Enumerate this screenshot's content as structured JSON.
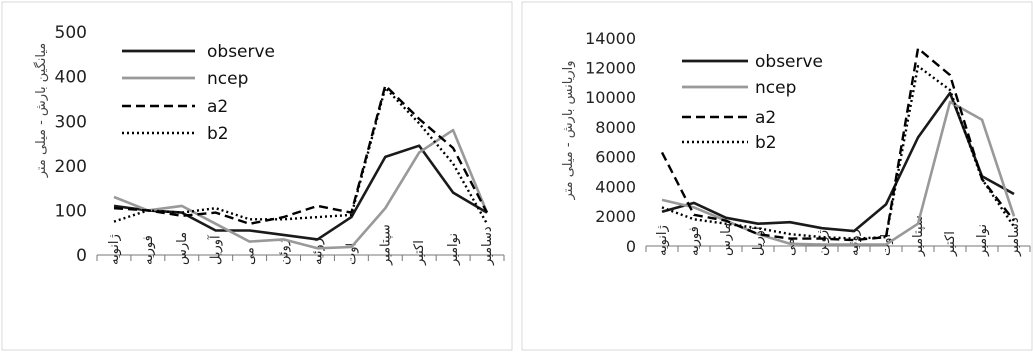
{
  "colors": {
    "observe": "#1a1a1a",
    "ncep": "#999999",
    "a2": "#000000",
    "b2": "#000000"
  },
  "chart_data": [
    {
      "type": "line",
      "title": "",
      "xlabel": "",
      "ylabel": "میانگین بارش - میلی متر",
      "ylim": [
        0,
        500
      ],
      "yticks": [
        0,
        100,
        200,
        300,
        400,
        500
      ],
      "grid": false,
      "legend": "top-left",
      "categories": [
        "ژانویه",
        "فوریه",
        "مارس",
        "آوریل",
        "می",
        "ژوئن",
        "ژوئیه",
        "اوت",
        "سپتامبر",
        "اکتبر",
        "نوامبر",
        "دسامبر"
      ],
      "series": [
        {
          "name": "observe",
          "style": "solid",
          "values": [
            110,
            100,
            95,
            55,
            55,
            45,
            35,
            85,
            220,
            245,
            140,
            95
          ]
        },
        {
          "name": "ncep",
          "style": "solid",
          "values": [
            130,
            100,
            110,
            70,
            30,
            35,
            15,
            18,
            105,
            230,
            280,
            95
          ]
        },
        {
          "name": "a2",
          "style": "dashed",
          "values": [
            105,
            100,
            88,
            95,
            70,
            85,
            110,
            95,
            380,
            305,
            240,
            95
          ]
        },
        {
          "name": "b2",
          "style": "dotted",
          "values": [
            75,
            100,
            95,
            105,
            80,
            80,
            85,
            90,
            375,
            295,
            205,
            70
          ]
        }
      ]
    },
    {
      "type": "line",
      "title": "",
      "xlabel": "",
      "ylabel": "واریانس بارش - میلی متر",
      "ylim": [
        0,
        14000
      ],
      "yticks": [
        0,
        2000,
        4000,
        6000,
        8000,
        10000,
        12000,
        14000
      ],
      "grid": false,
      "legend": "top-left",
      "categories": [
        "ژانویه",
        "فوریه",
        "مارس",
        "آوریل",
        "می",
        "ژوئن",
        "ژوئیه",
        "اوت",
        "سپتامبر",
        "اکتبر",
        "نوامبر",
        "دسامبر"
      ],
      "series": [
        {
          "name": "observe",
          "style": "solid",
          "values": [
            2300,
            2900,
            1900,
            1500,
            1600,
            1200,
            1000,
            2800,
            7300,
            10300,
            4700,
            3500
          ]
        },
        {
          "name": "ncep",
          "style": "solid",
          "values": [
            3100,
            2600,
            1700,
            800,
            150,
            100,
            100,
            100,
            1500,
            9700,
            8500,
            2000
          ]
        },
        {
          "name": "a2",
          "style": "dashed",
          "values": [
            6300,
            2100,
            1700,
            800,
            500,
            500,
            400,
            600,
            13300,
            11500,
            4500,
            1700
          ]
        },
        {
          "name": "b2",
          "style": "dotted",
          "values": [
            2600,
            1800,
            1500,
            1200,
            800,
            600,
            500,
            600,
            12100,
            10500,
            4500,
            1300
          ]
        }
      ]
    }
  ]
}
